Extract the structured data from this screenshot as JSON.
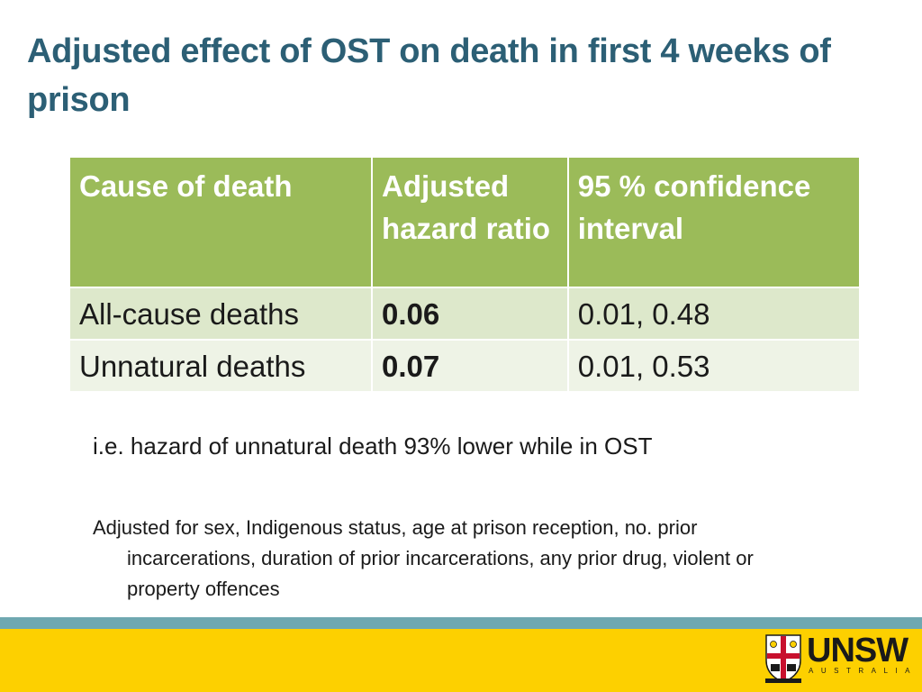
{
  "slide": {
    "title": "Adjusted effect of OST on death in first 4 weeks of prison"
  },
  "table": {
    "headers": [
      "Cause of death",
      "Adjusted hazard ratio",
      "95 % confidence interval"
    ],
    "rows": [
      {
        "cause": "All-cause deaths",
        "ahr": "0.06",
        "ci": "0.01, 0.48"
      },
      {
        "cause": "Unnatural deaths",
        "ahr": "0.07",
        "ci": "0.01, 0.53"
      }
    ]
  },
  "note": "i.e. hazard of unnatural death 93% lower while in OST",
  "adjusted_for": "Adjusted for sex, Indigenous status, age at prison reception, no. prior incarcerations, duration of prior incarcerations, any prior drug, violent or property offences",
  "logo": {
    "wordmark": "UNSW",
    "subtitle": "AUSTRALIA",
    "colors": {
      "red": "#c8102e",
      "yellow": "#fdd000",
      "black": "#1a1a1a"
    }
  },
  "colors": {
    "title": "#2c5f75",
    "header_bg": "#9bbb59",
    "row_a_bg": "#dde8cb",
    "row_b_bg": "#eef3e6",
    "teal_band": "#6fa8b1",
    "yellow_band": "#fdd000"
  }
}
